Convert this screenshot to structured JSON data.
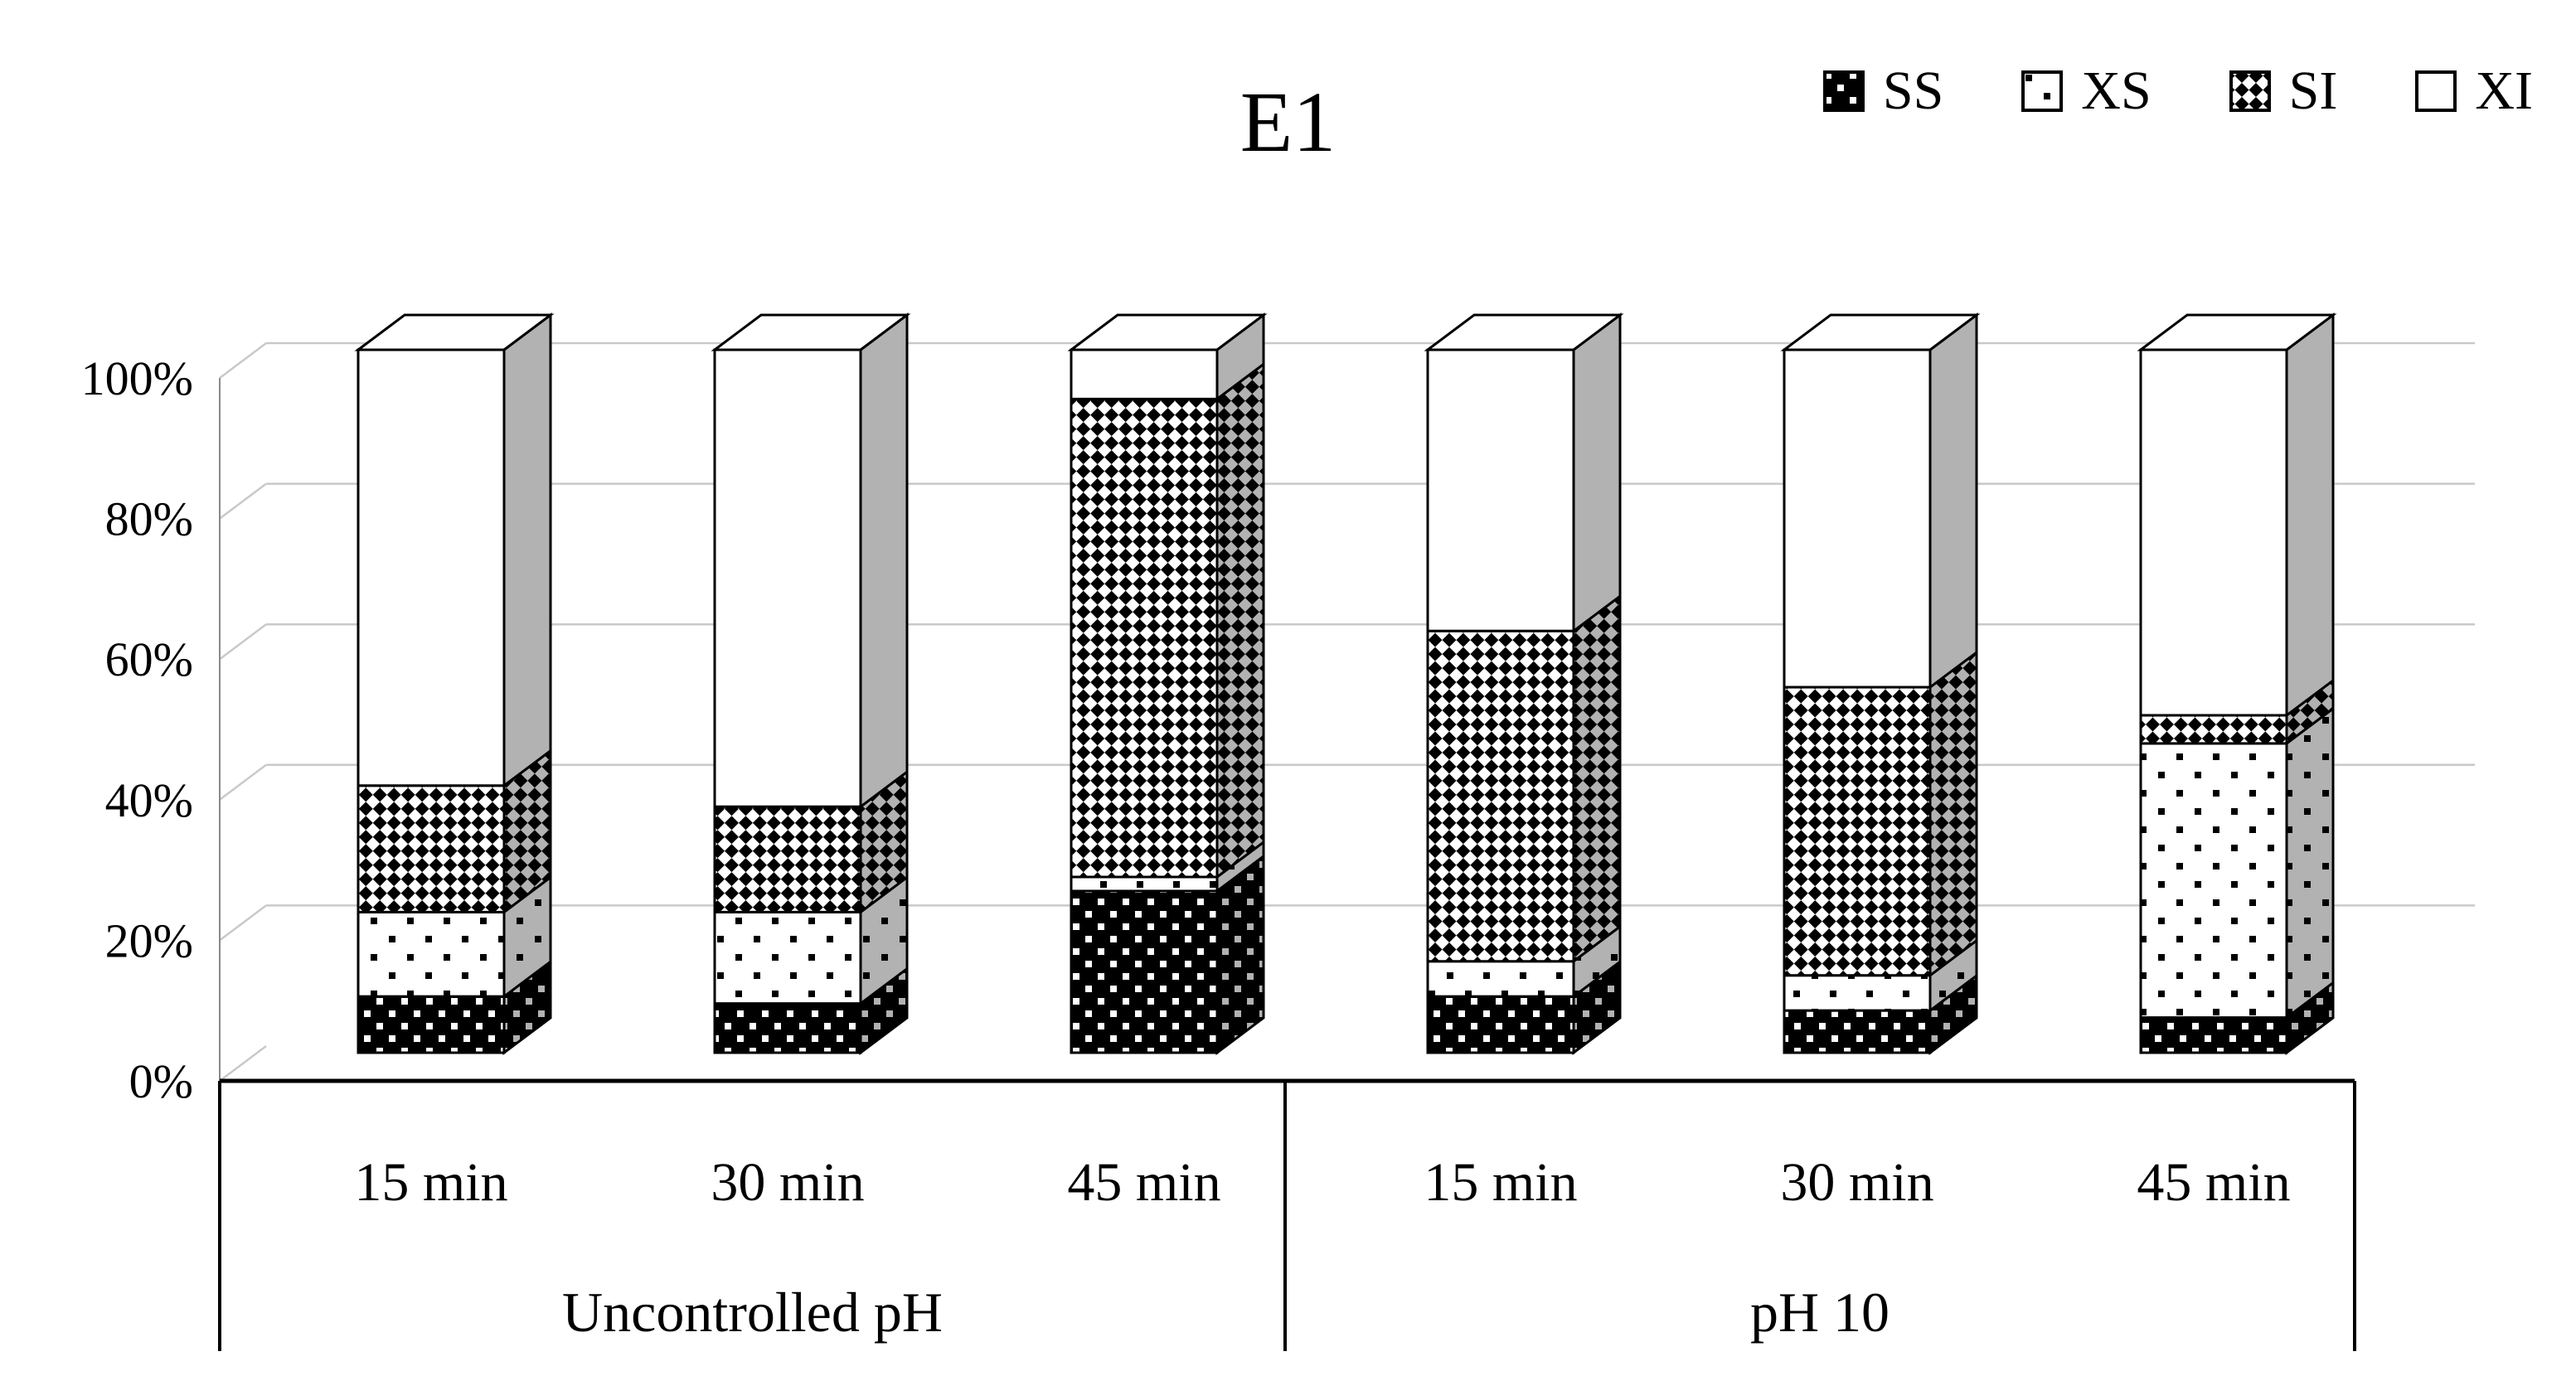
{
  "chart_data": {
    "type": "bar",
    "variant": "3d-stacked-100-percent",
    "title": "E1",
    "categories": [
      "15 min",
      "30 min",
      "45 min",
      "15 min",
      "30 min",
      "45 min"
    ],
    "group_labels": [
      {
        "label": "Uncontrolled pH",
        "start": 0,
        "end": 2
      },
      {
        "label": "pH 10",
        "start": 3,
        "end": 5
      }
    ],
    "series": [
      {
        "name": "SS",
        "pattern": "ss",
        "values": [
          8,
          7,
          23,
          8,
          6,
          5
        ]
      },
      {
        "name": "XS",
        "pattern": "xs",
        "values": [
          12,
          13,
          2,
          5,
          5,
          39
        ]
      },
      {
        "name": "SI",
        "pattern": "si",
        "values": [
          18,
          15,
          68,
          47,
          41,
          4
        ]
      },
      {
        "name": "XI",
        "pattern": "xi",
        "values": [
          62,
          65,
          7,
          40,
          48,
          52
        ]
      }
    ],
    "stack_order": "bottom-to-top",
    "ylim": [
      0,
      100
    ],
    "yticks": [
      {
        "v": 0,
        "label": "0%"
      },
      {
        "v": 20,
        "label": "20%"
      },
      {
        "v": 40,
        "label": "40%"
      },
      {
        "v": 60,
        "label": "60%"
      },
      {
        "v": 80,
        "label": "80%"
      },
      {
        "v": 100,
        "label": "100%"
      }
    ],
    "legend_position": "top-right",
    "grid": "on",
    "colors": {
      "grid": "#c9c9c9",
      "axis": "#000000",
      "bar_stroke": "#000000",
      "side_shade_alpha": 0.3
    }
  }
}
